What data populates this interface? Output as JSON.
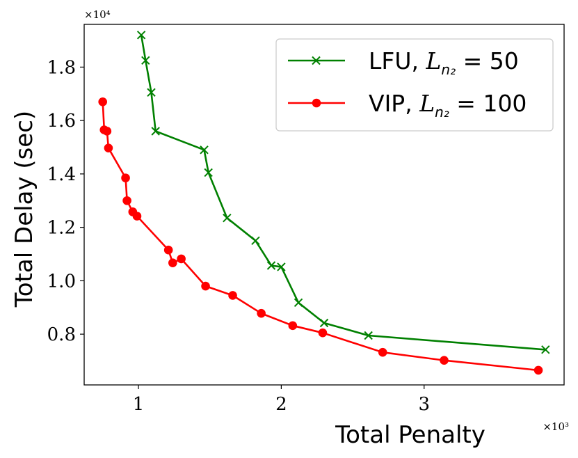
{
  "chart_data": {
    "type": "line",
    "xlabel": "Total Penalty",
    "ylabel": "Total Delay (sec)",
    "x_scale_label": "×10³",
    "y_scale_label": "×10⁴",
    "xlim": [
      0.62,
      3.98
    ],
    "ylim": [
      0.61,
      1.96
    ],
    "x_ticks": [
      1,
      2,
      3
    ],
    "x_tick_labels": [
      "1",
      "2",
      "3"
    ],
    "y_ticks": [
      0.8,
      1.0,
      1.2,
      1.4,
      1.6,
      1.8
    ],
    "y_tick_labels": [
      "0.8",
      "1.0",
      "1.2",
      "1.4",
      "1.6",
      "1.8"
    ],
    "grid": false,
    "legend_position": "top-right",
    "series": [
      {
        "name": "LFU, L_{n₂} = 50",
        "legend_prefix": "LFU, ",
        "legend_math": "L",
        "legend_sub": "n₂",
        "legend_suffix": " = 50",
        "color": "#008000",
        "marker": "x",
        "points": [
          [
            1.02,
            1.92
          ],
          [
            1.05,
            1.825
          ],
          [
            1.09,
            1.705
          ],
          [
            1.12,
            1.56
          ],
          [
            1.46,
            1.49
          ],
          [
            1.49,
            1.405
          ],
          [
            1.62,
            1.235
          ],
          [
            1.82,
            1.15
          ],
          [
            1.93,
            1.057
          ],
          [
            2.0,
            1.052
          ],
          [
            2.12,
            0.918
          ],
          [
            2.3,
            0.842
          ],
          [
            2.61,
            0.795
          ],
          [
            3.85,
            0.742
          ]
        ]
      },
      {
        "name": "VIP, L_{n₂} = 100",
        "legend_prefix": "VIP, ",
        "legend_math": "L",
        "legend_sub": "n₂",
        "legend_suffix": " = 100",
        "color": "#ff0000",
        "marker": "o",
        "points": [
          [
            0.75,
            1.67
          ],
          [
            0.76,
            1.565
          ],
          [
            0.78,
            1.56
          ],
          [
            0.79,
            1.497
          ],
          [
            0.91,
            1.385
          ],
          [
            0.92,
            1.3
          ],
          [
            0.96,
            1.258
          ],
          [
            0.99,
            1.242
          ],
          [
            1.21,
            1.115
          ],
          [
            1.24,
            1.067
          ],
          [
            1.3,
            1.082
          ],
          [
            1.47,
            0.98
          ],
          [
            1.66,
            0.945
          ],
          [
            1.86,
            0.878
          ],
          [
            2.08,
            0.832
          ],
          [
            2.29,
            0.805
          ],
          [
            2.71,
            0.732
          ],
          [
            3.14,
            0.702
          ],
          [
            3.8,
            0.665
          ]
        ]
      }
    ]
  }
}
